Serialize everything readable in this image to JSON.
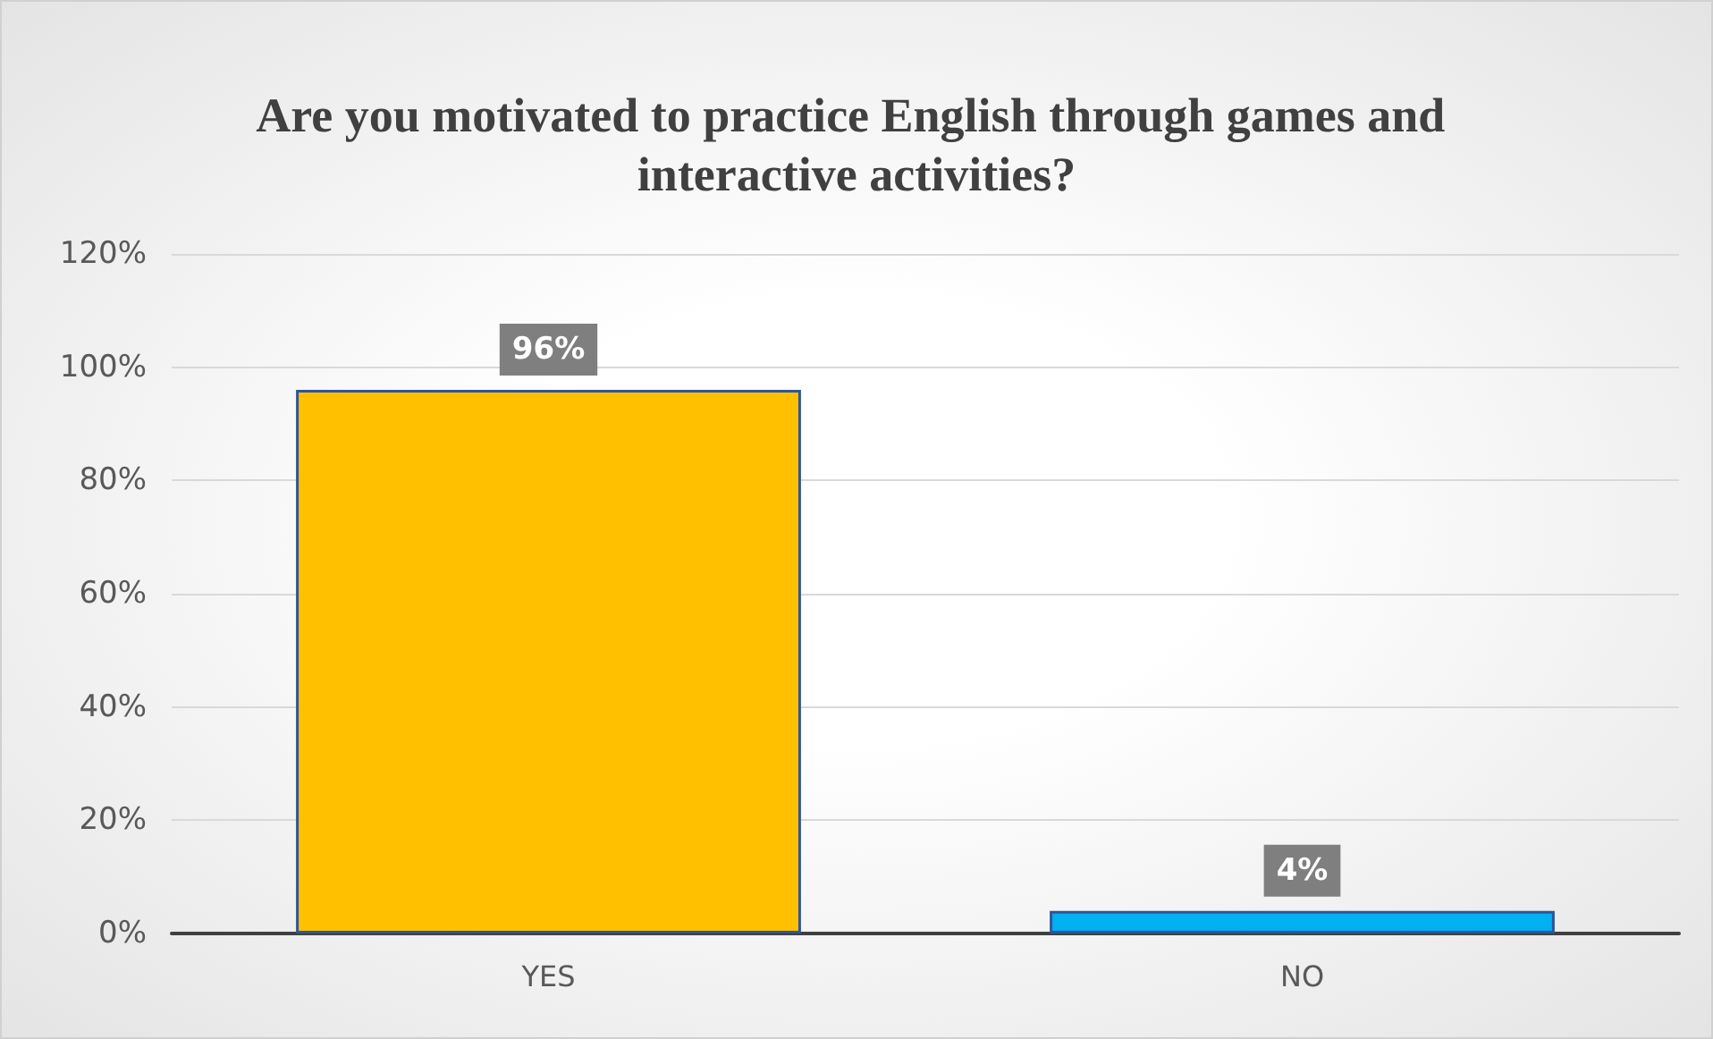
{
  "chart_data": {
    "type": "bar",
    "title": "Are you motivated to practice English through games and interactive activities?",
    "categories": [
      "YES",
      "NO"
    ],
    "values": [
      96,
      4
    ],
    "colors": [
      "#ffc000",
      "#00b0f0"
    ],
    "value_labels": [
      "96%",
      "4%"
    ],
    "ylim": [
      0,
      120
    ],
    "yticks": [
      {
        "value": 0,
        "label": "0%"
      },
      {
        "value": 20,
        "label": "20%"
      },
      {
        "value": 40,
        "label": "40%"
      },
      {
        "value": 60,
        "label": "60%"
      },
      {
        "value": 80,
        "label": "80%"
      },
      {
        "value": 100,
        "label": "100%"
      },
      {
        "value": 120,
        "label": "120%"
      }
    ],
    "grid": "y"
  }
}
